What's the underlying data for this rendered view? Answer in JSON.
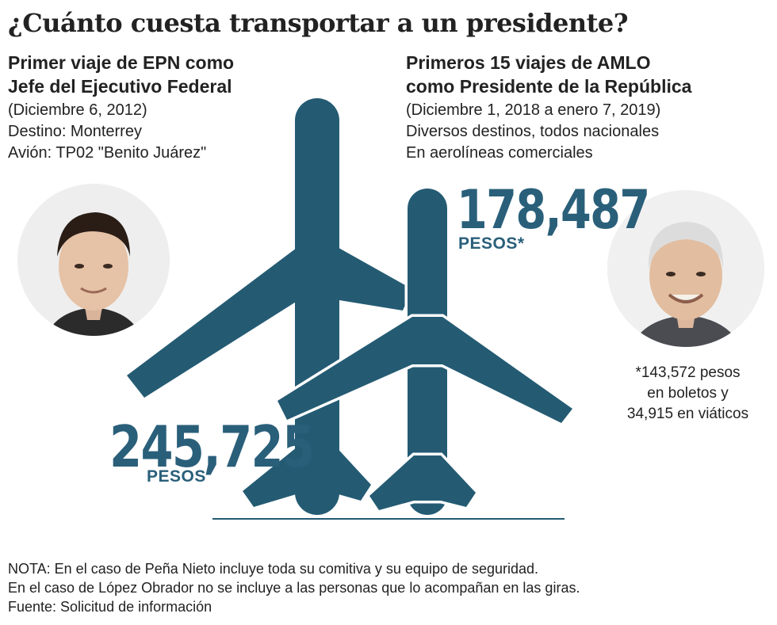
{
  "title": "¿Cuánto cuesta transportar a un presidente?",
  "epn": {
    "heading_line1": "Primer viaje de EPN como",
    "heading_line2": "Jefe del Ejecutivo Federal",
    "date": "(Diciembre 6, 2012)",
    "destination": "Destino: Monterrey",
    "plane": "Avión: TP02 \"Benito Juárez\"",
    "amount": "245,725",
    "unit": "PESOS"
  },
  "amlo": {
    "heading_line1": "Primeros 15 viajes de AMLO",
    "heading_line2": "como Presidente de la República",
    "date": "(Diciembre 1, 2018 a enero 7, 2019)",
    "destinations": "Diversos destinos, todos nacionales",
    "airlines": "En aerolíneas comerciales",
    "amount": "178,487",
    "unit": "PESOS*",
    "breakdown_line1": "*143,572 pesos",
    "breakdown_line2": "en boletos y",
    "breakdown_line3": "34,915 en viáticos"
  },
  "notes": {
    "line1": "NOTA: En el caso de Peña Nieto incluye toda su comitiva y su equipo de seguridad.",
    "line2": "En el caso de López Obrador no se incluye a las personas que lo acompañan en las giras.",
    "line3": "Fuente: Solicitud de información"
  },
  "colors": {
    "plane": "#245b73",
    "accent_text": "#2a5f7a",
    "text": "#222222"
  },
  "icons": {
    "big_plane": "airplane-silhouette-icon",
    "small_plane": "airplane-silhouette-icon"
  }
}
